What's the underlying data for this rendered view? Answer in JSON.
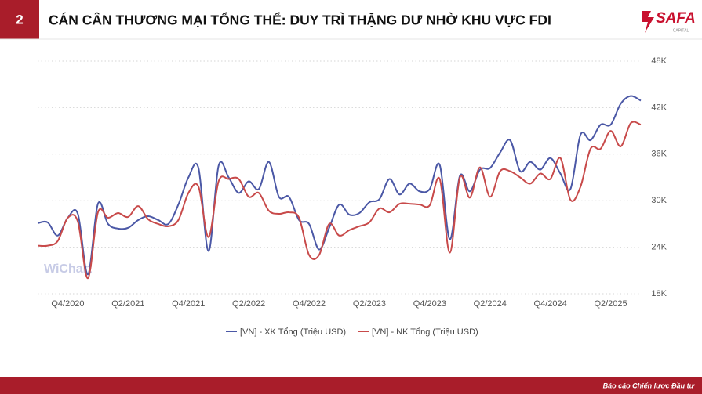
{
  "header": {
    "number": "2",
    "title": "CÁN CÂN THƯƠNG MẠI TỔNG THỂ: DUY TRÌ THẶNG DƯ NHỜ KHU VỰC FDI"
  },
  "logo": {
    "name": "SAFA",
    "sub": "CAPITAL"
  },
  "watermark": "WiChart",
  "footer": "Báo cáo Chiến lược Đầu tư",
  "chart_data": {
    "type": "line",
    "categories": [
      null,
      null,
      null,
      "Q4/2020",
      null,
      null,
      null,
      null,
      null,
      "Q2/2021",
      null,
      null,
      null,
      null,
      null,
      "Q4/2021",
      null,
      null,
      null,
      null,
      null,
      "Q2/2022",
      null,
      null,
      null,
      null,
      null,
      "Q4/2022",
      null,
      null,
      null,
      null,
      null,
      "Q2/2023",
      null,
      null,
      null,
      null,
      null,
      "Q4/2023",
      null,
      null,
      null,
      null,
      null,
      "Q2/2024",
      null,
      null,
      null,
      null,
      null,
      "Q4/2024",
      null,
      null,
      null,
      null,
      null,
      "Q2/2025",
      null,
      null,
      null
    ],
    "series": [
      {
        "name": "[VN] - XK Tổng (Triệu USD)",
        "color": "#4b58a6",
        "values": [
          27100,
          27200,
          25500,
          27800,
          28300,
          20500,
          29600,
          27000,
          26400,
          26500,
          27500,
          28000,
          27500,
          27000,
          29500,
          33000,
          34200,
          23500,
          34500,
          33000,
          31000,
          32500,
          31500,
          35000,
          30500,
          30500,
          27500,
          27000,
          23700,
          26500,
          29500,
          28200,
          28400,
          29800,
          30200,
          32800,
          30800,
          32200,
          31200,
          31500,
          34600,
          25000,
          33200,
          31200,
          34000,
          34200,
          36200,
          37800,
          33800,
          35000,
          34000,
          35500,
          33500,
          31500,
          38500,
          37800,
          39800,
          39800,
          42500,
          43500,
          42900
        ]
      },
      {
        "name": "[VN] - NK Tổng (Triệu USD)",
        "color": "#c84a4a",
        "values": [
          24200,
          24200,
          24800,
          27800,
          27300,
          20000,
          28500,
          27800,
          28400,
          27900,
          29300,
          27600,
          27000,
          26700,
          27500,
          31000,
          31800,
          25300,
          32500,
          32800,
          32800,
          30500,
          31000,
          28700,
          28300,
          28500,
          27800,
          23000,
          23000,
          27000,
          25500,
          26200,
          26700,
          27200,
          29000,
          28500,
          29600,
          29600,
          29500,
          29400,
          32800,
          23300,
          33000,
          30400,
          34300,
          30500,
          33800,
          33800,
          33000,
          32200,
          33500,
          32800,
          35500,
          30100,
          31800,
          36700,
          36700,
          39000,
          37000,
          40000,
          39800
        ]
      }
    ],
    "ylim": [
      18000,
      48000
    ],
    "yticks": [
      {
        "value": 18000,
        "label": "18K"
      },
      {
        "value": 24000,
        "label": "24K"
      },
      {
        "value": 30000,
        "label": "30K"
      },
      {
        "value": 36000,
        "label": "36K"
      },
      {
        "value": 42000,
        "label": "42K"
      },
      {
        "value": 48000,
        "label": "48K"
      }
    ],
    "grid": true,
    "legend": "bottom"
  }
}
